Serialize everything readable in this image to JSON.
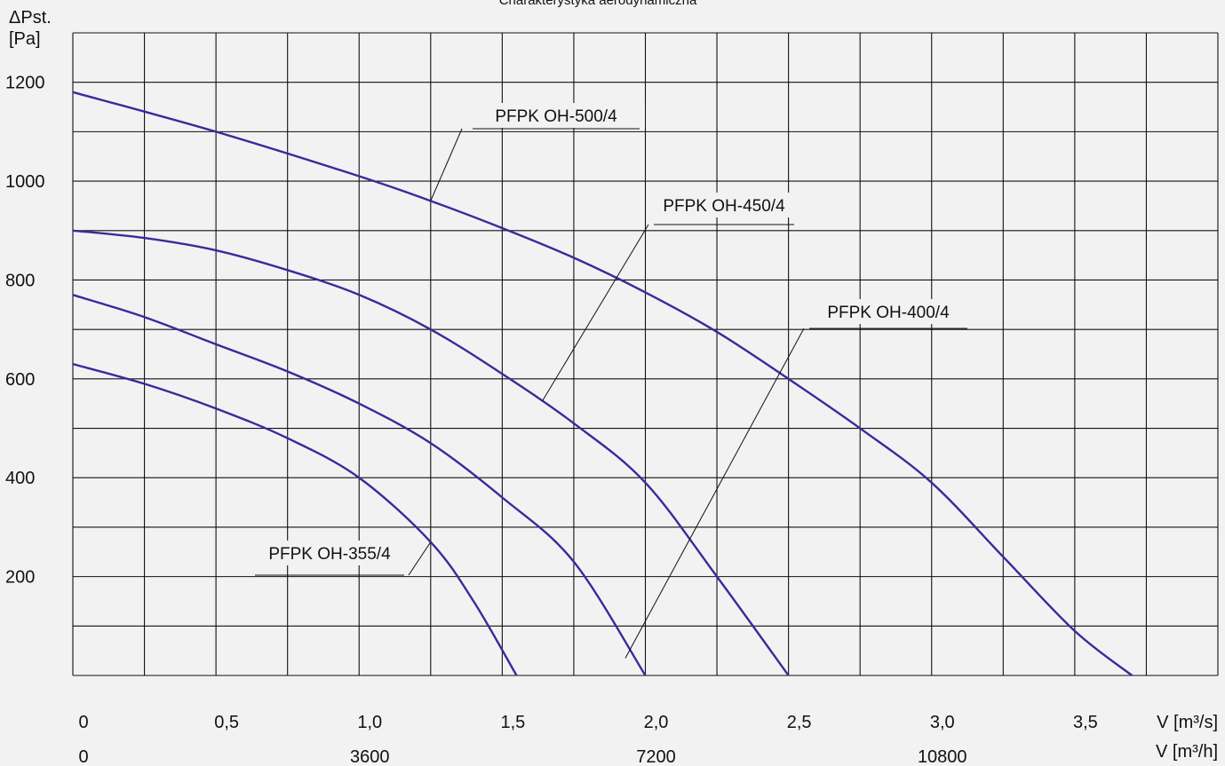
{
  "chart_data": {
    "type": "line",
    "title": "Charakterystyka aerodynamiczna",
    "y_axis": {
      "label_symbol": "ΔPst.",
      "label_unit": "[Pa]",
      "range": [
        0,
        1300
      ],
      "major_ticks": [
        200,
        400,
        600,
        800,
        1000,
        1200
      ],
      "tick_labels": [
        "200",
        "400",
        "600",
        "800",
        "1000",
        "1200"
      ],
      "grid_step": 100
    },
    "x_axis": {
      "range_m3s": [
        0,
        4.0
      ],
      "grid_step_m3s": 0.25,
      "tick_values_m3s": [
        0,
        0.5,
        1.0,
        1.5,
        2.0,
        2.5,
        3.0,
        3.5
      ],
      "tick_labels_m3s": [
        "0",
        "0,5",
        "1,0",
        "1,5",
        "2,0",
        "2,5",
        "3,0",
        "3,5"
      ],
      "unit_label_m3s": "V [m³/s]",
      "tick_values_m3h": [
        0,
        3600,
        7200,
        10800
      ],
      "tick_labels_m3h": [
        "0",
        "3600",
        "7200",
        "10800"
      ],
      "unit_label_m3h": "V [m³/h]"
    },
    "grid": true,
    "line_color": "#3a2a9a",
    "series": [
      {
        "name": "PFPK OH-500/4",
        "x": [
          0,
          0.5,
          1.0,
          1.25,
          1.5,
          1.75,
          2.0,
          2.25,
          2.5,
          2.75,
          3.0,
          3.25,
          3.5,
          3.7
        ],
        "y": [
          1180,
          1100,
          1010,
          960,
          905,
          845,
          775,
          695,
          600,
          500,
          390,
          240,
          90,
          0
        ]
      },
      {
        "name": "PFPK OH-450/4",
        "x": [
          0,
          0.25,
          0.5,
          0.75,
          1.0,
          1.25,
          1.5,
          1.75,
          2.0,
          2.25,
          2.5
        ],
        "y": [
          900,
          885,
          860,
          820,
          770,
          700,
          610,
          510,
          390,
          200,
          0
        ]
      },
      {
        "name": "PFPK OH-400/4",
        "x": [
          0,
          0.25,
          0.5,
          0.75,
          1.0,
          1.25,
          1.5,
          1.75,
          2.0
        ],
        "y": [
          770,
          725,
          670,
          615,
          550,
          470,
          360,
          230,
          0
        ]
      },
      {
        "name": "PFPK OH-355/4",
        "x": [
          0,
          0.25,
          0.5,
          0.75,
          1.0,
          1.25,
          1.4,
          1.55
        ],
        "y": [
          630,
          590,
          540,
          480,
          400,
          270,
          150,
          0
        ]
      }
    ],
    "annotations": [
      {
        "text": "PFPK OH-500/4",
        "anchor_x": 1.25,
        "anchor_y": 960
      },
      {
        "text": "PFPK OH-450/4",
        "anchor_x": 1.64,
        "anchor_y": 555
      },
      {
        "text": "PFPK OH-400/4",
        "anchor_x": 1.93,
        "anchor_y": 35
      },
      {
        "text": "PFPK OH-355/4",
        "anchor_x": 1.25,
        "anchor_y": 270
      }
    ]
  }
}
